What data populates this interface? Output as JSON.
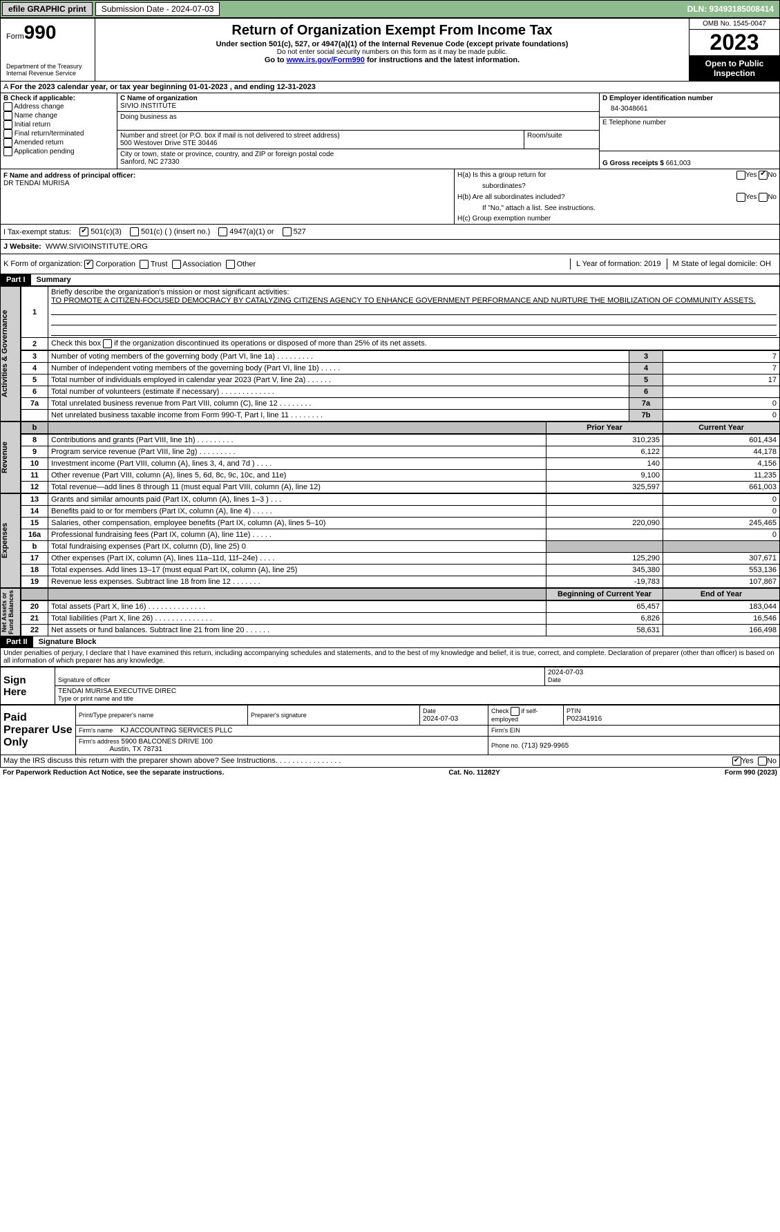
{
  "top": {
    "efile": "efile GRAPHIC print",
    "submission": "Submission Date - 2024-07-03",
    "dln": "DLN: 93493185008414"
  },
  "hdr": {
    "form": "990",
    "form_word": "Form",
    "title": "Return of Organization Exempt From Income Tax",
    "sub1": "Under section 501(c), 527, or 4947(a)(1) of the Internal Revenue Code (except private foundations)",
    "sub2": "Do not enter social security numbers on this form as it may be made public.",
    "sub3_pre": "Go to ",
    "sub3_link": "www.irs.gov/Form990",
    "sub3_post": " for instructions and the latest information.",
    "dept": "Department of the Treasury\nInternal Revenue Service",
    "omb": "OMB No. 1545-0047",
    "year": "2023",
    "inspect": "Open to Public Inspection"
  },
  "a": {
    "text": "For the 2023 calendar year, or tax year beginning 01-01-2023    , and ending 12-31-2023"
  },
  "b": {
    "title": "B Check if applicable:",
    "addr": "Address change",
    "name": "Name change",
    "init": "Initial return",
    "final": "Final return/terminated",
    "amend": "Amended return",
    "app": "Application pending"
  },
  "c": {
    "lbl": "C Name of organization",
    "org": "SIVIO INSTITUTE",
    "dba_lbl": "Doing business as",
    "dba": "",
    "street_lbl": "Number and street (or P.O. box if mail is not delivered to street address)",
    "street": "500 Westover Drive STE 30446",
    "room_lbl": "Room/suite",
    "room": "",
    "city_lbl": "City or town, state or province, country, and ZIP or foreign postal code",
    "city": "Sanford, NC  27330"
  },
  "d": {
    "lbl": "D Employer identification number",
    "ein": "84-3048661"
  },
  "e": {
    "lbl": "E Telephone number",
    "val": ""
  },
  "g": {
    "lbl": "G Gross receipts $",
    "val": "661,003"
  },
  "f": {
    "lbl": "F  Name and address of principal officer:",
    "name": "DR TENDAI MURISA"
  },
  "h": {
    "a": "H(a)  Is this a group return for",
    "a2": "subordinates?",
    "b": "H(b)  Are all subordinates included?",
    "b2": "If \"No,\" attach a list. See instructions.",
    "c": "H(c)  Group exemption number",
    "yes": "Yes",
    "no": "No"
  },
  "i": {
    "lbl": "I    Tax-exempt status:",
    "c3": "501(c)(3)",
    "c": "501(c) (  ) (insert no.)",
    "a1": "4947(a)(1) or",
    "s527": "527"
  },
  "j": {
    "lbl": "J   Website:",
    "val": "WWW.SIVIOINSTITUTE.ORG"
  },
  "k": {
    "lbl": "K Form of organization:",
    "corp": "Corporation",
    "trust": "Trust",
    "assoc": "Association",
    "other": "Other"
  },
  "l": {
    "lbl": "L Year of formation: 2019"
  },
  "m": {
    "lbl": "M State of legal domicile: OH"
  },
  "p1": {
    "hdr": "Part I",
    "title": "Summary",
    "q1": "Briefly describe the organization's mission or most significant activities:",
    "mission": "TO PROMOTE A CITIZEN-FOCUSED DEMOCRACY BY CATALYZING CITIZENS AGENCY TO ENHANCE GOVERNMENT PERFORMANCE AND NURTURE THE MOBILIZATION OF COMMUNITY ASSETS.",
    "q2": "Check this box        if the organization discontinued its operations or disposed of more than 25% of its net assets.",
    "tab_ag": "Activities & Governance",
    "tab_rev": "Revenue",
    "tab_exp": "Expenses",
    "tab_na": "Net Assets or\nFund Balances",
    "rows_ag": [
      {
        "n": "3",
        "t": "Number of voting members of the governing body (Part VI, line 1a)   .    .    .    .    .    .    .    .    .",
        "box": "3",
        "v": "7"
      },
      {
        "n": "4",
        "t": "Number of independent voting members of the governing body (Part VI, line 1b)   .    .    .    .    .",
        "box": "4",
        "v": "7"
      },
      {
        "n": "5",
        "t": "Total number of individuals employed in calendar year 2023 (Part V, line 2a)   .    .    .    .    .    .",
        "box": "5",
        "v": "17"
      },
      {
        "n": "6",
        "t": "Total number of volunteers (estimate if necessary)    .    .    .    .    .    .    .    .    .    .    .    .    .",
        "box": "6",
        "v": ""
      },
      {
        "n": "7a",
        "t": "Total unrelated business revenue from Part VIII, column (C), line 12   .    .    .    .    .    .    .    .",
        "box": "7a",
        "v": "0"
      },
      {
        "n": "",
        "t": "Net unrelated business taxable income from Form 990-T, Part I, line 11   .    .    .    .    .    .    .    .",
        "box": "7b",
        "v": "0"
      }
    ],
    "hdr_prior": "Prior Year",
    "hdr_curr": "Current Year",
    "rows_rev": [
      {
        "n": "8",
        "t": "Contributions and grants (Part VIII, line 1h)    .    .    .    .    .    .    .    .    .",
        "p": "310,235",
        "c": "601,434"
      },
      {
        "n": "9",
        "t": "Program service revenue (Part VIII, line 2g)    .    .    .    .    .    .    .    .    .",
        "p": "6,122",
        "c": "44,178"
      },
      {
        "n": "10",
        "t": "Investment income (Part VIII, column (A), lines 3, 4, and 7d )    .    .    .    .",
        "p": "140",
        "c": "4,156"
      },
      {
        "n": "11",
        "t": "Other revenue (Part VIII, column (A), lines 5, 6d, 8c, 9c, 10c, and 11e)",
        "p": "9,100",
        "c": "11,235"
      },
      {
        "n": "12",
        "t": "Total revenue—add lines 8 through 11 (must equal Part VIII, column (A), line 12)",
        "p": "325,597",
        "c": "661,003"
      }
    ],
    "rows_exp": [
      {
        "n": "13",
        "t": "Grants and similar amounts paid (Part IX, column (A), lines 1–3 )   .    .    .",
        "p": "",
        "c": "0"
      },
      {
        "n": "14",
        "t": "Benefits paid to or for members (Part IX, column (A), line 4)   .    .    .    .    .",
        "p": "",
        "c": "0"
      },
      {
        "n": "15",
        "t": "Salaries, other compensation, employee benefits (Part IX, column (A), lines 5–10)",
        "p": "220,090",
        "c": "245,465"
      },
      {
        "n": "16a",
        "t": "Professional fundraising fees (Part IX, column (A), line 11e)   .    .    .    .    .",
        "p": "",
        "c": "0"
      },
      {
        "n": "b",
        "t": "Total fundraising expenses (Part IX, column (D), line 25) 0",
        "p": "SHADE",
        "c": "SHADE"
      },
      {
        "n": "17",
        "t": "Other expenses (Part IX, column (A), lines 11a–11d, 11f–24e)   .    .    .    .",
        "p": "125,290",
        "c": "307,671"
      },
      {
        "n": "18",
        "t": "Total expenses. Add lines 13–17 (must equal Part IX, column (A), line 25)",
        "p": "345,380",
        "c": "553,136"
      },
      {
        "n": "19",
        "t": "Revenue less expenses. Subtract line 18 from line 12   .    .    .    .    .    .    .",
        "p": "-19,783",
        "c": "107,867"
      }
    ],
    "hdr_beg": "Beginning of Current Year",
    "hdr_end": "End of Year",
    "rows_na": [
      {
        "n": "20",
        "t": "Total assets (Part X, line 16)   .    .    .    .    .    .    .    .    .    .    .    .    .    .",
        "p": "65,457",
        "c": "183,044"
      },
      {
        "n": "21",
        "t": "Total liabilities (Part X, line 26)   .    .    .    .    .    .    .    .    .    .    .    .    .    .",
        "p": "6,826",
        "c": "16,546"
      },
      {
        "n": "22",
        "t": "Net assets or fund balances. Subtract line 21 from line 20   .    .    .    .    .    .",
        "p": "58,631",
        "c": "166,498"
      }
    ]
  },
  "p2": {
    "hdr": "Part II",
    "title": "Signature Block",
    "decl": "Under penalties of perjury, I declare that I have examined this return, including accompanying schedules and statements, and to the best of my knowledge and belief, it is true, correct, and complete. Declaration of preparer (other than officer) is based on all information of which preparer has any knowledge.",
    "sign": "Sign Here",
    "sig_off": "Signature of officer",
    "sig_date": "2024-07-03",
    "officer": "TENDAI MURISA  EXECUTIVE DIREC",
    "type_lbl": "Type or print name and title",
    "date_lbl": "Date",
    "paid": "Paid Preparer Use Only",
    "prep_name_lbl": "Print/Type preparer's name",
    "prep_sig_lbl": "Preparer's signature",
    "prep_date": "2024-07-03",
    "chk": "Check         if self-employed",
    "ptin_lbl": "PTIN",
    "ptin": "P02341916",
    "firm_lbl": "Firm's name",
    "firm": "KJ ACCOUNTING SERVICES PLLC",
    "ein_lbl": "Firm's EIN",
    "addr_lbl": "Firm's address",
    "addr": "5900 BALCONES DRIVE 100",
    "addr2": "Austin, TX  78731",
    "ph_lbl": "Phone no.",
    "ph": "(713) 929-9965",
    "discuss": "May the IRS discuss this return with the preparer shown above? See Instructions.   .    .    .    .    .    .    .    .    .    .    .    .    .    .    .",
    "yes": "Yes",
    "no": "No"
  },
  "foot": {
    "pra": "For Paperwork Reduction Act Notice, see the separate instructions.",
    "cat": "Cat. No. 11282Y",
    "form": "Form 990 (2023)"
  }
}
